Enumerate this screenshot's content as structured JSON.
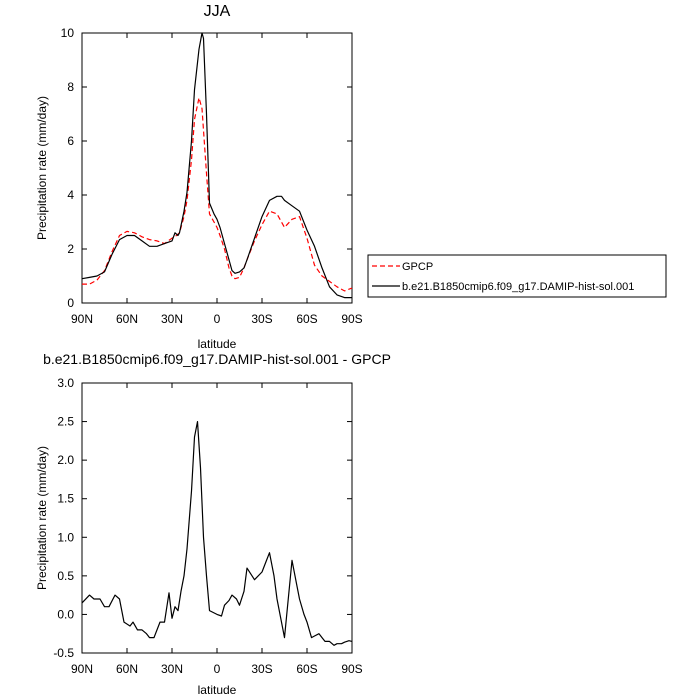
{
  "chart_data": [
    {
      "type": "line",
      "title": "JJA",
      "xlabel": "latitude",
      "ylabel": "Precipitation rate (mm/day)",
      "x_ticks": [
        "90N",
        "60N",
        "30N",
        "0",
        "30S",
        "60S",
        "90S"
      ],
      "x_tick_values": [
        90,
        60,
        30,
        0,
        -30,
        -60,
        -90
      ],
      "xlim": [
        90,
        -90
      ],
      "ylim": [
        0,
        10
      ],
      "y_ticks": [
        "0",
        "2",
        "4",
        "6",
        "8",
        "10"
      ],
      "y_tick_values": [
        0,
        2,
        4,
        6,
        8,
        10
      ],
      "grid": false,
      "legend_position": "right",
      "series": [
        {
          "name": "GPCP",
          "color": "#ff0000",
          "dash": "dashed",
          "x": [
            90,
            85,
            80,
            75,
            70,
            65,
            60,
            55,
            50,
            45,
            40,
            35,
            30,
            27,
            25,
            22,
            20,
            17,
            15,
            12,
            10,
            7,
            5,
            2,
            0,
            -2,
            -5,
            -8,
            -10,
            -12,
            -15,
            -18,
            -20,
            -25,
            -30,
            -35,
            -40,
            -45,
            -50,
            -55,
            -60,
            -65,
            -70,
            -75,
            -80,
            -85,
            -90
          ],
          "values": [
            0.7,
            0.7,
            0.85,
            1.2,
            1.9,
            2.5,
            2.65,
            2.6,
            2.45,
            2.35,
            2.3,
            2.2,
            2.4,
            2.5,
            2.6,
            3.2,
            3.8,
            5.3,
            6.8,
            7.6,
            7.2,
            4.8,
            3.3,
            3.0,
            2.8,
            2.5,
            2.0,
            1.3,
            1.0,
            0.9,
            0.95,
            1.3,
            1.6,
            2.3,
            2.9,
            3.4,
            3.3,
            2.8,
            3.1,
            3.2,
            2.4,
            1.4,
            1.0,
            0.8,
            0.6,
            0.45,
            0.55
          ]
        },
        {
          "name": "b.e21.B1850cmip6.f09_g17.DAMIP-hist-sol.001",
          "color": "#000000",
          "dash": "solid",
          "x": [
            90,
            85,
            80,
            75,
            70,
            65,
            60,
            55,
            50,
            45,
            40,
            35,
            30,
            28,
            26,
            25,
            22,
            20,
            17,
            15,
            12,
            10,
            9,
            7,
            5,
            2,
            0,
            -2,
            -5,
            -8,
            -10,
            -12,
            -15,
            -18,
            -20,
            -25,
            -30,
            -35,
            -40,
            -43,
            -45,
            -50,
            -55,
            -60,
            -65,
            -70,
            -75,
            -80,
            -85,
            -90
          ],
          "values": [
            0.9,
            0.95,
            1.0,
            1.15,
            1.8,
            2.35,
            2.5,
            2.5,
            2.3,
            2.1,
            2.1,
            2.2,
            2.3,
            2.6,
            2.5,
            2.6,
            3.4,
            4.1,
            6.0,
            7.9,
            9.4,
            10.0,
            9.8,
            7.0,
            3.7,
            3.3,
            3.1,
            2.8,
            2.2,
            1.6,
            1.2,
            1.1,
            1.15,
            1.3,
            1.6,
            2.4,
            3.2,
            3.8,
            3.95,
            3.95,
            3.8,
            3.6,
            3.4,
            2.7,
            2.1,
            1.3,
            0.6,
            0.3,
            0.2,
            0.2
          ]
        }
      ]
    },
    {
      "type": "line",
      "title": "b.e21.B1850cmip6.f09_g17.DAMIP-hist-sol.001 - GPCP",
      "xlabel": "latitude",
      "ylabel": "Precipitation rate (mm/day)",
      "x_ticks": [
        "90N",
        "60N",
        "30N",
        "0",
        "30S",
        "60S",
        "90S"
      ],
      "x_tick_values": [
        90,
        60,
        30,
        0,
        -30,
        -60,
        -90
      ],
      "xlim": [
        90,
        -90
      ],
      "ylim": [
        -0.5,
        3.0
      ],
      "y_ticks": [
        "-0.5",
        "0.0",
        "0.5",
        "1.0",
        "1.5",
        "2.0",
        "2.5",
        "3.0"
      ],
      "y_tick_values": [
        -0.5,
        0.0,
        0.5,
        1.0,
        1.5,
        2.0,
        2.5,
        3.0
      ],
      "grid": false,
      "series": [
        {
          "color": "#000000",
          "dash": "solid",
          "x": [
            90,
            85,
            82,
            78,
            75,
            72,
            68,
            65,
            62,
            58,
            56,
            53,
            50,
            47,
            45,
            42,
            38,
            35,
            32,
            30,
            28,
            26,
            24,
            22,
            20,
            17,
            15,
            13,
            11,
            9,
            7,
            5,
            2,
            0,
            -3,
            -5,
            -8,
            -10,
            -13,
            -15,
            -18,
            -20,
            -25,
            -30,
            -33,
            -35,
            -38,
            -40,
            -45,
            -48,
            -50,
            -53,
            -55,
            -58,
            -60,
            -63,
            -65,
            -68,
            -70,
            -72,
            -75,
            -78,
            -80,
            -83,
            -85,
            -88,
            -90
          ],
          "values": [
            0.15,
            0.25,
            0.2,
            0.2,
            0.1,
            0.1,
            0.25,
            0.2,
            -0.1,
            -0.15,
            -0.1,
            -0.2,
            -0.2,
            -0.25,
            -0.3,
            -0.3,
            -0.1,
            -0.1,
            0.28,
            -0.05,
            0.1,
            0.05,
            0.3,
            0.5,
            0.85,
            1.6,
            2.3,
            2.5,
            1.9,
            1.0,
            0.5,
            0.05,
            0.02,
            0.0,
            -0.02,
            0.12,
            0.18,
            0.25,
            0.2,
            0.12,
            0.3,
            0.6,
            0.45,
            0.55,
            0.7,
            0.8,
            0.5,
            0.2,
            -0.3,
            0.3,
            0.7,
            0.4,
            0.2,
            0.0,
            -0.1,
            -0.3,
            -0.28,
            -0.25,
            -0.3,
            -0.35,
            -0.35,
            -0.4,
            -0.38,
            -0.38,
            -0.36,
            -0.34,
            -0.35
          ]
        }
      ]
    }
  ]
}
